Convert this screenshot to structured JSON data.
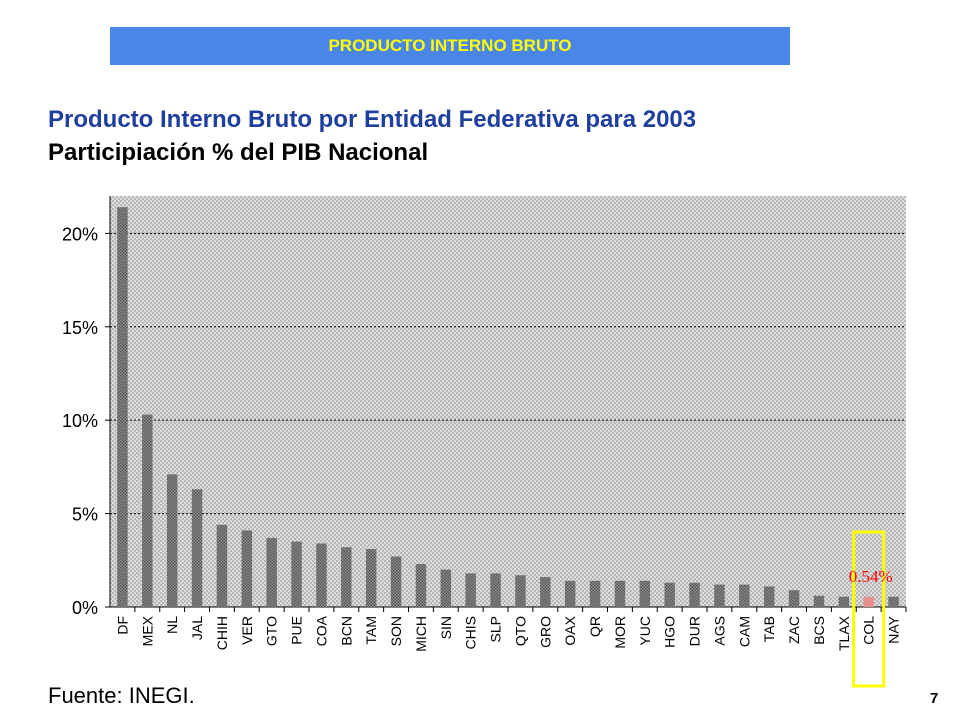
{
  "header": {
    "title": "PRODUCTO INTERNO BRUTO"
  },
  "chart_data": {
    "type": "bar",
    "title": "Producto Interno Bruto por Entidad Federativa para 2003",
    "subtitle": "Participiación % del PIB Nacional",
    "categories": [
      "DF",
      "MEX",
      "NL",
      "JAL",
      "CHIH",
      "VER",
      "GTO",
      "PUE",
      "COA",
      "BCN",
      "TAM",
      "SON",
      "MICH",
      "SIN",
      "CHIS",
      "SLP",
      "QTO",
      "GRO",
      "OAX",
      "QR",
      "MOR",
      "YUC",
      "HGO",
      "DUR",
      "AGS",
      "CAM",
      "TAB",
      "ZAC",
      "BCS",
      "TLAX",
      "COL",
      "NAY"
    ],
    "values": [
      21.4,
      10.3,
      7.1,
      6.3,
      4.4,
      4.1,
      3.7,
      3.5,
      3.4,
      3.2,
      3.1,
      2.7,
      2.3,
      2.0,
      1.8,
      1.8,
      1.7,
      1.6,
      1.4,
      1.4,
      1.4,
      1.4,
      1.3,
      1.3,
      1.2,
      1.2,
      1.1,
      0.9,
      0.6,
      0.55,
      0.54,
      0.55
    ],
    "ylim": [
      0,
      22
    ],
    "yticks": [
      "0%",
      "5%",
      "10%",
      "15%",
      "20%"
    ],
    "ytick_values": [
      0,
      5,
      10,
      15,
      20
    ],
    "grid": true,
    "highlight": {
      "category": "COL",
      "label": "0.54%",
      "label_color": "#ff0000",
      "box_color": "#ffff00",
      "bar_color": "#e89090"
    },
    "bar_color": "#999999",
    "plot_background": "#d0d0d0"
  },
  "source": "Fuente: INEGI.",
  "page_number": "7"
}
